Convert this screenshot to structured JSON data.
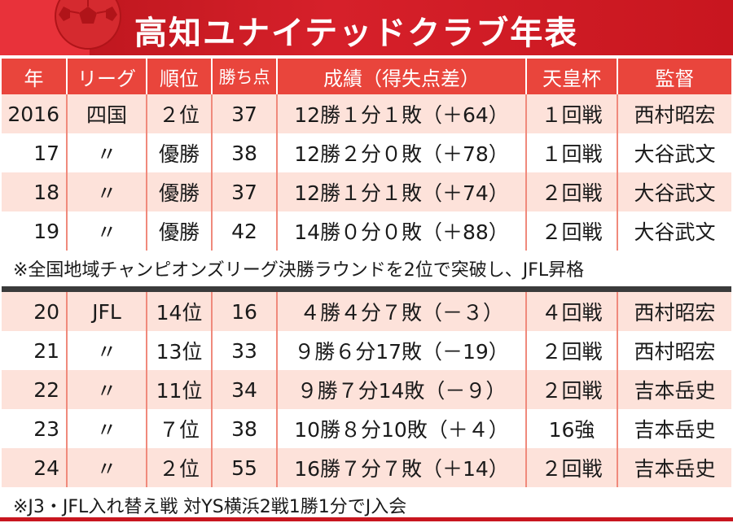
{
  "title": "高知ユナイテッドクラブ年表",
  "headers": {
    "year": "年",
    "league": "リーグ",
    "rank": "順位",
    "points": "勝ち点",
    "record": "成績（得失点差）",
    "emperors_cup": "天皇杯",
    "manager": "監督"
  },
  "rows_before": [
    {
      "year": "2016",
      "league": "四国",
      "rank": "２位",
      "points": "37",
      "record": "12勝１分１敗（＋64）",
      "cup": "１回戦",
      "manager": "西村昭宏"
    },
    {
      "year": "17",
      "league": "〃",
      "rank": "優勝",
      "points": "38",
      "record": "12勝２分０敗（＋78）",
      "cup": "１回戦",
      "manager": "大谷武文"
    },
    {
      "year": "18",
      "league": "〃",
      "rank": "優勝",
      "points": "37",
      "record": "12勝１分１敗（＋74）",
      "cup": "２回戦",
      "manager": "大谷武文"
    },
    {
      "year": "19",
      "league": "〃",
      "rank": "優勝",
      "points": "42",
      "record": "14勝０分０敗（＋88）",
      "cup": "２回戦",
      "manager": "大谷武文"
    }
  ],
  "note_1": "※全国地域チャンピオンズリーグ決勝ラウンドを2位で突破し、JFL昇格",
  "rows_after": [
    {
      "year": "20",
      "league": "JFL",
      "rank": "14位",
      "points": "16",
      "record": "４勝４分７敗（－３）",
      "cup": "４回戦",
      "manager": "西村昭宏"
    },
    {
      "year": "21",
      "league": "〃",
      "rank": "13位",
      "points": "33",
      "record": "９勝６分17敗（－19）",
      "cup": "２回戦",
      "manager": "西村昭宏"
    },
    {
      "year": "22",
      "league": "〃",
      "rank": "11位",
      "points": "34",
      "record": "９勝７分14敗（－９）",
      "cup": "２回戦",
      "manager": "吉本岳史"
    },
    {
      "year": "23",
      "league": "〃",
      "rank": "７位",
      "points": "38",
      "record": "10勝８分10敗（＋４）",
      "cup": "16強",
      "manager": "吉本岳史"
    },
    {
      "year": "24",
      "league": "〃",
      "rank": "２位",
      "points": "55",
      "record": "16勝７分７敗（＋14）",
      "cup": "２回戦",
      "manager": "吉本岳史"
    }
  ],
  "note_2": "※J3・JFL入れ替え戦 対YS横浜2戦1勝1分でJ入会",
  "colors": {
    "title_red": "#d6202a",
    "header_red": "#e9453c",
    "row_pink": "#fde2da",
    "divider": "#3b3b3b"
  }
}
